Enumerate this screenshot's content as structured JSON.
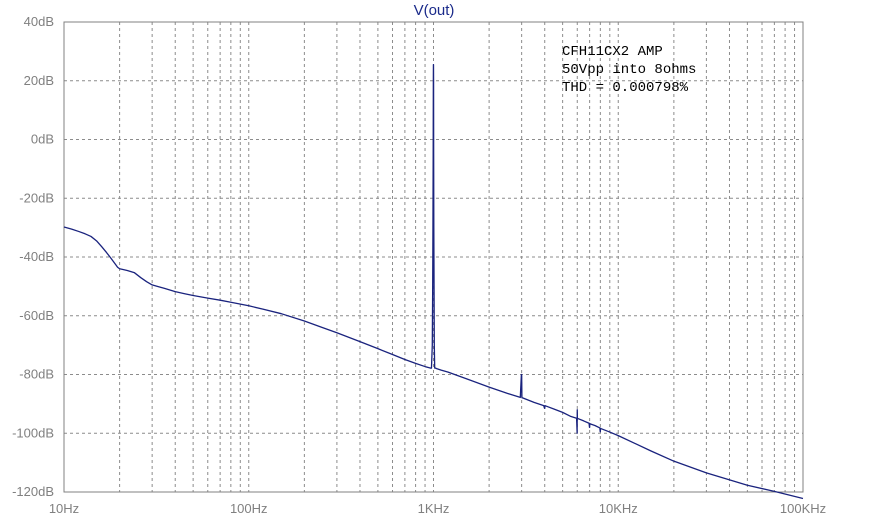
{
  "chart_data": {
    "type": "line",
    "title": "V(out)",
    "xscale": "log",
    "xlim": [
      10,
      100000
    ],
    "ylim": [
      -120,
      40
    ],
    "grid": true,
    "x_tick_labels": [
      "10Hz",
      "100Hz",
      "1KHz",
      "10KHz",
      "100KHz"
    ],
    "x_tick_values": [
      10,
      100,
      1000,
      10000,
      100000
    ],
    "y_tick_labels": [
      "40dB",
      "20dB",
      "0dB",
      "-20dB",
      "-40dB",
      "-60dB",
      "-80dB",
      "-100dB",
      "-120dB"
    ],
    "y_tick_values": [
      40,
      20,
      0,
      -20,
      -40,
      -60,
      -80,
      -100,
      -120
    ],
    "annotations": [
      "CFH11CX2 AMP",
      "50Vpp into 8ohms",
      "THD = 0.000798%"
    ],
    "series": [
      {
        "color": "#1a237e",
        "x": [
          10,
          11,
          12,
          13,
          14,
          15,
          16,
          17,
          18,
          19,
          19.5,
          20,
          21,
          22,
          24,
          26,
          28,
          30,
          32,
          35,
          40,
          45,
          50,
          60,
          70,
          80,
          100,
          120,
          150,
          200,
          250,
          300,
          400,
          500,
          600,
          700,
          800,
          900,
          960,
          975,
          985,
          990,
          993,
          996,
          998,
          999,
          1000,
          1001,
          1002,
          1004,
          1007,
          1010,
          1015,
          1025,
          1040,
          1100,
          1200,
          1500,
          2000,
          2500,
          2950,
          2990,
          3000,
          3010,
          3050,
          3500,
          3950,
          3990,
          4000,
          4010,
          4050,
          4500,
          5000,
          5500,
          5950,
          5990,
          6000,
          6010,
          6050,
          6500,
          6950,
          6990,
          7000,
          7010,
          7050,
          7500,
          7950,
          7990,
          8000,
          8010,
          8050,
          9000,
          10000,
          15000,
          20000,
          30000,
          50000,
          70000,
          100000
        ],
        "values": [
          -29.8,
          -30.5,
          -31.3,
          -32.1,
          -33.0,
          -34.5,
          -36.5,
          -38.5,
          -40.5,
          -42.5,
          -43.5,
          -44.0,
          -44.3,
          -44.6,
          -45.3,
          -47.0,
          -48.4,
          -49.5,
          -50.0,
          -50.7,
          -51.8,
          -52.5,
          -53.1,
          -54.0,
          -54.7,
          -55.4,
          -56.6,
          -57.8,
          -59.3,
          -61.8,
          -64.0,
          -65.8,
          -68.8,
          -71.2,
          -73.2,
          -74.9,
          -76.2,
          -77.3,
          -77.8,
          -77.8,
          -70,
          -50,
          -30,
          -5,
          20,
          25.5,
          25.5,
          20,
          -5,
          -30,
          -50,
          -70,
          -77.8,
          -77.8,
          -78.0,
          -78.5,
          -79.2,
          -81.4,
          -84.3,
          -86.4,
          -87.8,
          -80,
          -80,
          -87.9,
          -88.0,
          -89.5,
          -90.6,
          -91.5,
          -91.5,
          -90.6,
          -90.7,
          -91.8,
          -92.9,
          -94.2,
          -94.9,
          -100,
          -92,
          -95,
          -95.0,
          -95.8,
          -96.6,
          -98.0,
          -98.0,
          -96.7,
          -96.8,
          -97.4,
          -98.2,
          -99.5,
          -99.5,
          -98.3,
          -98.4,
          -99.6,
          -100.8,
          -106.0,
          -109.5,
          -113.5,
          -117.7,
          -119.8,
          -122.2
        ]
      }
    ]
  }
}
